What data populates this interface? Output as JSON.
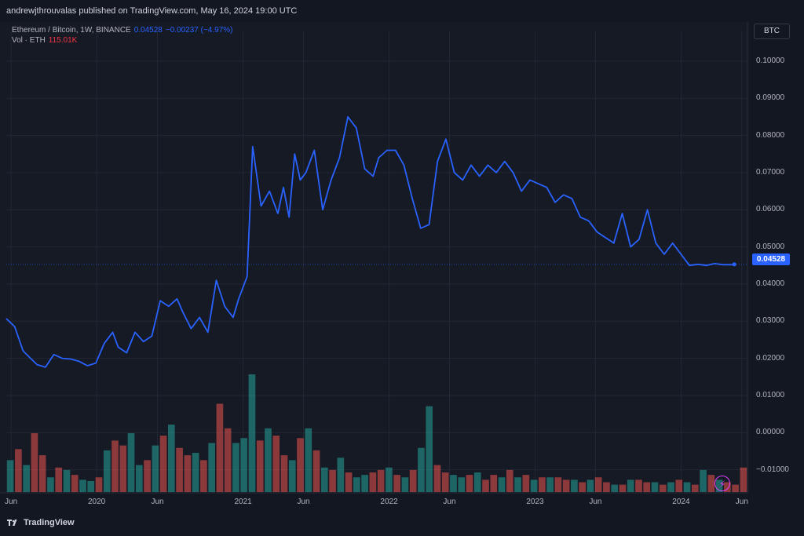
{
  "header": {
    "published": "andrewjthrouvalas published on TradingView.com, May 16, 2024 19:00 UTC"
  },
  "legend": {
    "symbol": "Ethereum / Bitcoin, 1W, BINANCE",
    "last": "0.04528",
    "change": "−0.00237 (−4.97%)",
    "vol_label": "Vol · ETH",
    "vol_value": "115.01K"
  },
  "currency_button": "BTC",
  "price_tag": "0.04528",
  "footer": {
    "brand": "TradingView"
  },
  "colors": {
    "line": "#2962ff",
    "up": "#26a69a",
    "down": "#ef5350",
    "background": "#161a25"
  },
  "icons": {
    "bolt": "lightning-icon",
    "logo": "tradingview-logo"
  },
  "chart_data": {
    "type": "line",
    "y_axis_ticks": [
      "0.10000",
      "0.09000",
      "0.08000",
      "0.07000",
      "0.06000",
      "0.05000",
      "0.04000",
      "0.03000",
      "0.02000",
      "0.01000",
      "0.00000",
      "−0.01000"
    ],
    "ylim": [
      -0.016,
      0.108
    ],
    "x_axis_ticks": [
      "Jun",
      "2020",
      "Jun",
      "2021",
      "Jun",
      "2022",
      "Jun",
      "2023",
      "Jun",
      "2024",
      "Jun"
    ],
    "x_tick_dates": [
      "2019-06-01",
      "2020-01-01",
      "2020-06-01",
      "2021-01-01",
      "2021-06-01",
      "2022-01-01",
      "2022-06-01",
      "2023-01-01",
      "2023-06-01",
      "2024-01-01",
      "2024-06-01"
    ],
    "xlim": [
      "2019-05-20",
      "2024-06-15"
    ],
    "grid": true,
    "series": [
      {
        "type": "line",
        "x": [
          "2019-05-20",
          "2019-06-10",
          "2019-07-01",
          "2019-07-15",
          "2019-08-05",
          "2019-08-26",
          "2019-09-16",
          "2019-10-07",
          "2019-10-28",
          "2019-11-18",
          "2019-12-09",
          "2019-12-30",
          "2020-01-20",
          "2020-02-10",
          "2020-02-24",
          "2020-03-16",
          "2020-04-06",
          "2020-04-27",
          "2020-05-18",
          "2020-06-08",
          "2020-06-29",
          "2020-07-20",
          "2020-08-03",
          "2020-08-24",
          "2020-09-14",
          "2020-10-05",
          "2020-10-26",
          "2020-11-16",
          "2020-12-07",
          "2020-12-21",
          "2021-01-11",
          "2021-01-25",
          "2021-02-15",
          "2021-03-08",
          "2021-03-29",
          "2021-04-12",
          "2021-04-26",
          "2021-05-10",
          "2021-05-24",
          "2021-06-07",
          "2021-06-28",
          "2021-07-19",
          "2021-08-09",
          "2021-08-30",
          "2021-09-20",
          "2021-10-11",
          "2021-11-01",
          "2021-11-22",
          "2021-12-06",
          "2021-12-27",
          "2022-01-17",
          "2022-02-07",
          "2022-02-28",
          "2022-03-21",
          "2022-04-11",
          "2022-05-02",
          "2022-05-23",
          "2022-06-13",
          "2022-07-04",
          "2022-07-25",
          "2022-08-15",
          "2022-09-05",
          "2022-09-26",
          "2022-10-17",
          "2022-11-07",
          "2022-11-28",
          "2022-12-19",
          "2023-01-09",
          "2023-01-30",
          "2023-02-20",
          "2023-03-13",
          "2023-04-03",
          "2023-04-24",
          "2023-05-15",
          "2023-06-05",
          "2023-06-26",
          "2023-07-17",
          "2023-08-07",
          "2023-08-28",
          "2023-09-18",
          "2023-10-09",
          "2023-10-30",
          "2023-11-20",
          "2023-12-11",
          "2024-01-01",
          "2024-01-22",
          "2024-02-12",
          "2024-03-04",
          "2024-03-25",
          "2024-04-15",
          "2024-05-06",
          "2024-05-13"
        ],
        "values": [
          0.0307,
          0.0285,
          0.022,
          0.0205,
          0.0183,
          0.0176,
          0.021,
          0.02,
          0.0198,
          0.0192,
          0.018,
          0.0187,
          0.024,
          0.027,
          0.023,
          0.0215,
          0.027,
          0.0245,
          0.026,
          0.0355,
          0.034,
          0.036,
          0.0325,
          0.028,
          0.031,
          0.027,
          0.041,
          0.034,
          0.031,
          0.036,
          0.042,
          0.077,
          0.061,
          0.065,
          0.059,
          0.066,
          0.058,
          0.075,
          0.068,
          0.07,
          0.076,
          0.06,
          0.068,
          0.074,
          0.085,
          0.082,
          0.071,
          0.069,
          0.074,
          0.076,
          0.076,
          0.072,
          0.063,
          0.055,
          0.056,
          0.073,
          0.079,
          0.07,
          0.068,
          0.072,
          0.069,
          0.072,
          0.07,
          0.073,
          0.07,
          0.065,
          0.068,
          0.067,
          0.066,
          0.062,
          0.064,
          0.063,
          0.058,
          0.057,
          0.054,
          0.0525,
          0.051,
          0.059,
          0.05,
          0.052,
          0.06,
          0.051,
          0.048,
          0.051,
          0.048,
          0.045,
          0.0453,
          0.045,
          0.0455,
          0.0452,
          0.0452,
          0.04528
        ]
      },
      {
        "name": "Vol · ETH",
        "type": "bar",
        "values": [
          26,
          35,
          22,
          48,
          30,
          12,
          20,
          18,
          14,
          10,
          9,
          12,
          34,
          42,
          38,
          48,
          22,
          26,
          38,
          46,
          55,
          36,
          30,
          32,
          26,
          40,
          72,
          52,
          40,
          44,
          96,
          42,
          52,
          46,
          30,
          26,
          44,
          52,
          34,
          20,
          18,
          28,
          16,
          12,
          14,
          16,
          18,
          20,
          14,
          12,
          18,
          36,
          70,
          22,
          16,
          14,
          12,
          14,
          16,
          10,
          14,
          12,
          18,
          12,
          14,
          10,
          12,
          12,
          12,
          10,
          10,
          8,
          10,
          12,
          8,
          6,
          6,
          10,
          10,
          8,
          8,
          6,
          8,
          10,
          8,
          6,
          18,
          14,
          10,
          8,
          6,
          20
        ],
        "up": [
          1,
          0,
          1,
          0,
          0,
          1,
          0,
          1,
          0,
          1,
          1,
          0,
          1,
          0,
          0,
          1,
          1,
          0,
          1,
          0,
          1,
          0,
          0,
          1,
          0,
          1,
          0,
          0,
          1,
          1,
          1,
          0,
          1,
          0,
          0,
          1,
          0,
          1,
          0,
          1,
          0,
          1,
          0,
          1,
          1,
          0,
          0,
          1,
          0,
          1,
          0,
          1,
          1,
          0,
          0,
          1,
          1,
          0,
          1,
          0,
          0,
          1,
          0,
          1,
          0,
          1,
          0,
          1,
          0,
          0,
          1,
          0,
          1,
          0,
          0,
          1,
          0,
          1,
          0,
          0,
          1,
          0,
          1,
          0,
          1,
          0,
          1,
          0,
          1,
          0,
          0,
          0
        ]
      }
    ]
  }
}
